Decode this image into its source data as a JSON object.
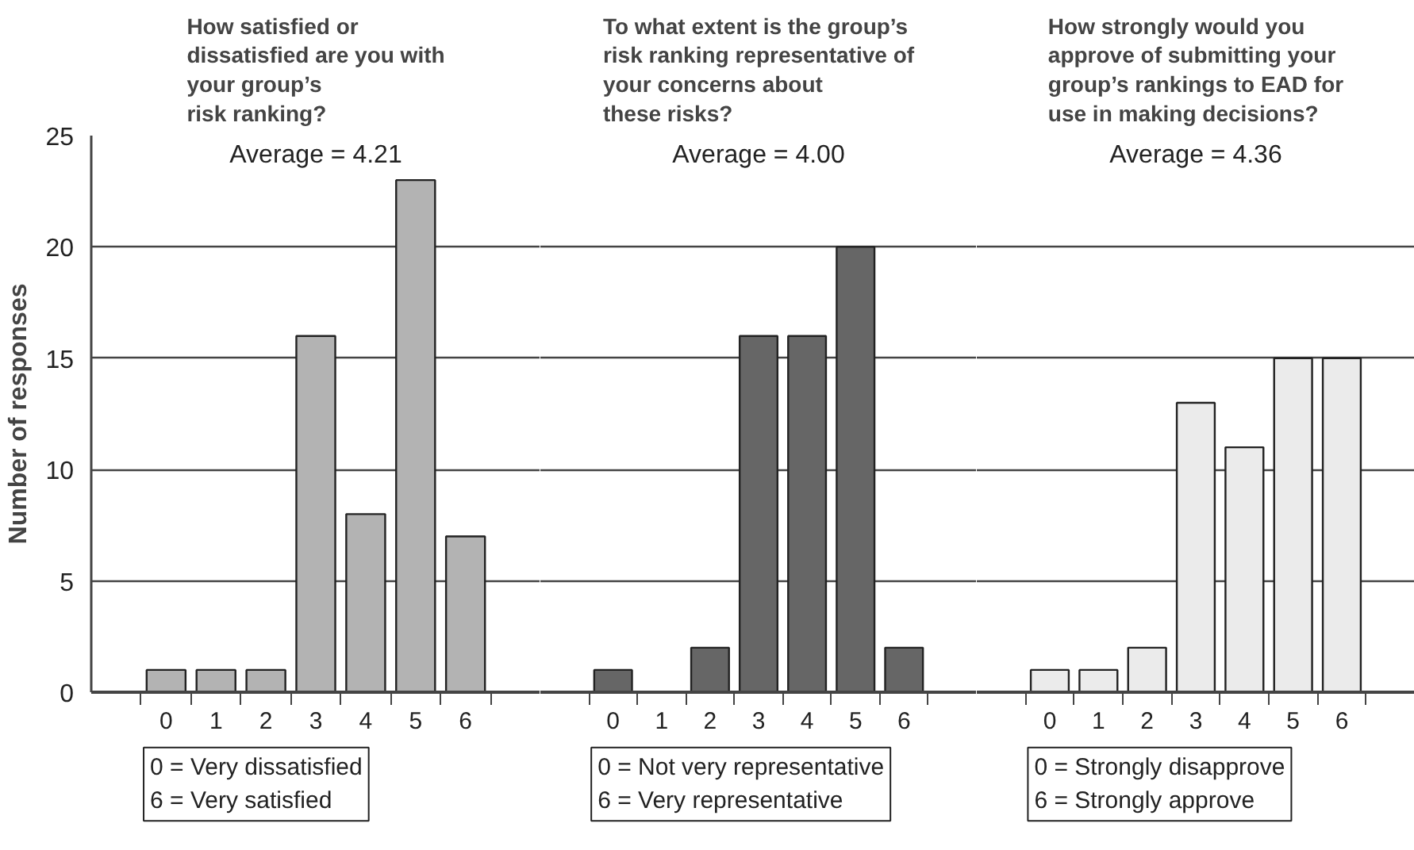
{
  "chart_data": [
    {
      "type": "bar",
      "title": "How satisfied or\ndissatisfied are you with\nyour group’s\nrisk ranking?",
      "ylabel": "Number of responses",
      "categories": [
        "0",
        "1",
        "2",
        "3",
        "4",
        "5",
        "6"
      ],
      "values": [
        1,
        1,
        1,
        16,
        8,
        23,
        7
      ],
      "color": "#b3b3b3",
      "ylim": [
        0,
        25
      ],
      "yticks": [
        0,
        5,
        10,
        15,
        20,
        25
      ],
      "grid": "y",
      "annotations": [
        "Average = 4.21",
        "0 = Very dissatisfied",
        "6 = Very satisfied"
      ]
    },
    {
      "type": "bar",
      "title": "To what extent is the group’s\nrisk ranking representative of\nyour concerns about\nthese risks?",
      "categories": [
        "0",
        "1",
        "2",
        "3",
        "4",
        "5",
        "6"
      ],
      "values": [
        1,
        0,
        2,
        16,
        16,
        20,
        2
      ],
      "color": "#666666",
      "ylim": [
        0,
        25
      ],
      "yticks": [
        0,
        5,
        10,
        15,
        20,
        25
      ],
      "grid": "y",
      "tick_labels": "x",
      "annotations": [
        "Average = 4.00",
        "0 = Not very representative",
        "6 = Very representative"
      ]
    },
    {
      "type": "bar",
      "title": "How strongly would you\napprove of submitting your\ngroup’s rankings to EAD for\nuse in making decisions?",
      "categories": [
        "0",
        "1",
        "2",
        "3",
        "4",
        "5",
        "6"
      ],
      "values": [
        1,
        1,
        2,
        13,
        11,
        15,
        15
      ],
      "color": "#ebebeb",
      "ylim": [
        0,
        25
      ],
      "yticks": [
        0,
        5,
        10,
        15,
        20,
        25
      ],
      "grid": "y",
      "tick_labels": "x",
      "annotations": [
        "Average = 4.36",
        "0 = Strongly disapprove",
        "6 = Strongly approve"
      ]
    }
  ]
}
